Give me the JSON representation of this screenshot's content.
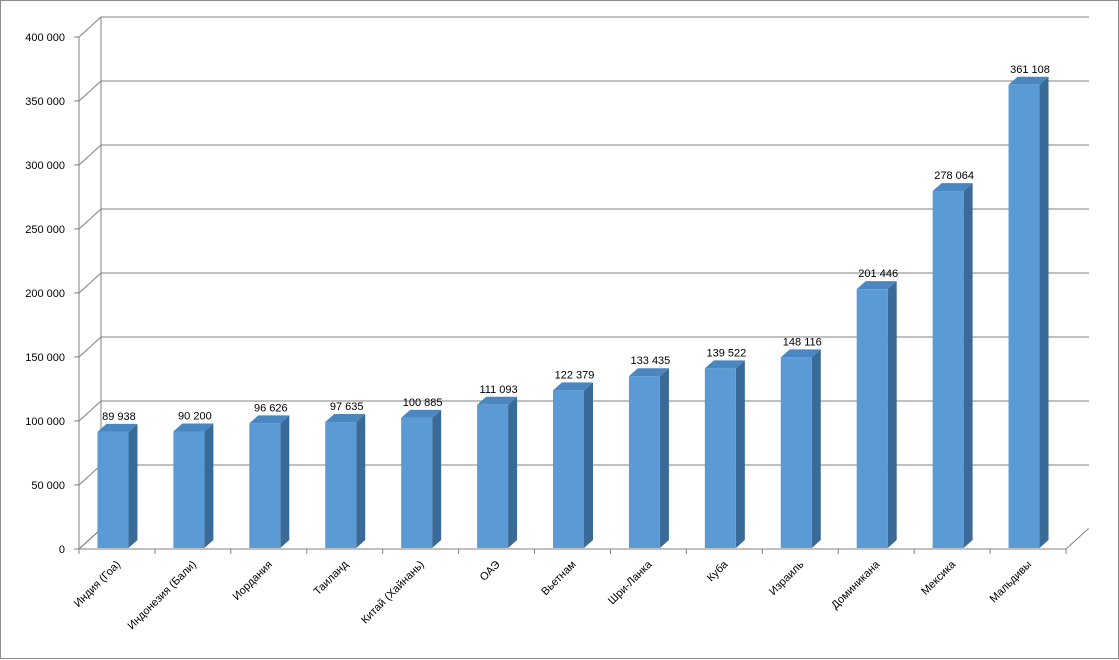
{
  "chart_data": {
    "type": "bar",
    "categories": [
      "Индия (Гоа)",
      "Индонезия (Бали)",
      "Иордания",
      "Таиланд",
      "Китай (Хайнань)",
      "ОАЭ",
      "Вьетнам",
      "Шри-Ланка",
      "Куба",
      "Израиль",
      "Доминикана",
      "Мексика",
      "Мальдивы"
    ],
    "values": [
      89938,
      90200,
      96626,
      97635,
      100885,
      111093,
      122379,
      133435,
      139522,
      148116,
      201446,
      278064,
      361108
    ],
    "data_labels": [
      "89 938",
      "90 200",
      "96 626",
      "97 635",
      "100 885",
      "111 093",
      "122 379",
      "133 435",
      "139 522",
      "148 116",
      "201 446",
      "278 064",
      "361 108"
    ],
    "ylim": [
      0,
      400000
    ],
    "yticks": [
      0,
      50000,
      100000,
      150000,
      200000,
      250000,
      300000,
      350000,
      400000
    ],
    "ytick_labels": [
      "0",
      "50 000",
      "100 000",
      "150 000",
      "200 000",
      "250 000",
      "300 000",
      "350 000",
      "400 000"
    ],
    "title": "",
    "xlabel": "",
    "ylabel": "",
    "grid": true,
    "legend": "none",
    "style": "3d-column",
    "colors": {
      "bar_front": "#5b9bd5",
      "bar_top": "#4a86c0",
      "bar_side": "#3a6a98",
      "gridline": "#808080",
      "axis": "#808080"
    }
  }
}
